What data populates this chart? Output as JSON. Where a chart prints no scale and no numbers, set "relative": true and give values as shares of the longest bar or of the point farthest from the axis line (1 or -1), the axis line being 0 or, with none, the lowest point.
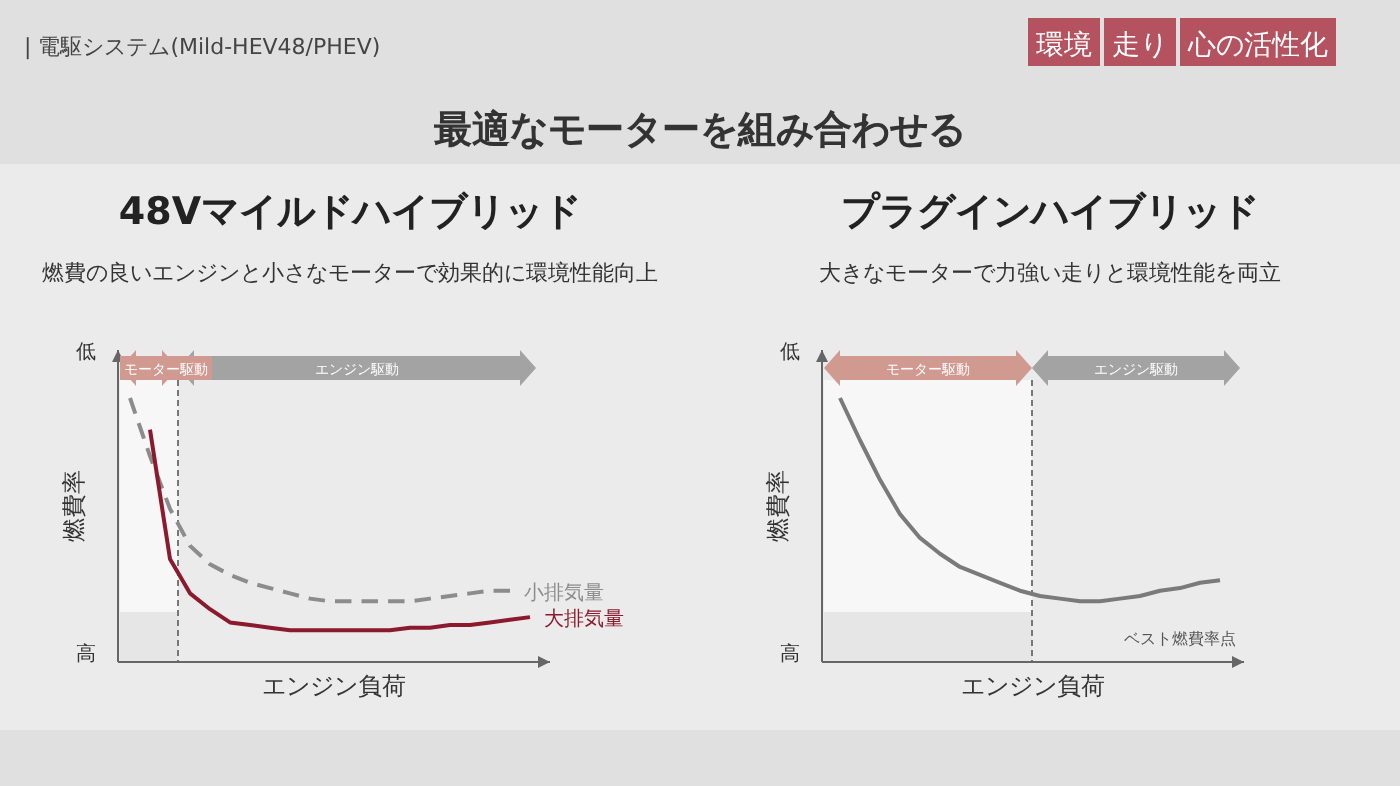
{
  "chart_data": [
    {
      "type": "other",
      "title": "最適なモーターを組み合わせる",
      "annotations": [
        "| 電駆システム(Mild-HEV48/PHEV)",
        "環境",
        "走り",
        "心の活性化"
      ]
    },
    {
      "type": "line",
      "relative": true,
      "title": "48Vマイルドハイブリッド",
      "subtitle": "燃費の良いエンジンと小さなモーターで効果的に環境性能向上",
      "xlabel": "エンジン負荷",
      "ylabel": "燃費率",
      "legend": false,
      "annotations": [
        "低",
        "高",
        "モーター駆動",
        "エンジン駆動"
      ],
      "categories": [
        null,
        null,
        null,
        null,
        null,
        null,
        null,
        null,
        null,
        null,
        null,
        null,
        null,
        null,
        null,
        null,
        null,
        null,
        null,
        null,
        null
      ],
      "series": [
        {
          "name": "小排気量",
          "color": "#8c8c8c",
          "line_style": "dashed",
          "values": [
            1,
            0.78,
            0.58,
            0.44,
            0.37,
            0.33,
            0.3,
            0.28,
            0.26,
            0.24,
            0.23,
            0.23,
            0.23,
            0.23,
            0.23,
            0.24,
            0.25,
            0.26,
            0.27,
            0.27,
            null
          ]
        },
        {
          "name": "大排気量",
          "color": "#8b1a2e",
          "line_style": "solid",
          "values": [
            null,
            0.88,
            0.39,
            0.26,
            0.2,
            0.15,
            0.14,
            0.13,
            0.12,
            0.12,
            0.12,
            0.12,
            0.12,
            0.12,
            0.13,
            0.13,
            0.14,
            0.14,
            0.15,
            0.16,
            0.17
          ]
        }
      ]
    },
    {
      "type": "line",
      "relative": true,
      "title": "プラグインハイブリッド",
      "subtitle": "大きなモーターで力強い走りと環境性能を両立",
      "xlabel": "エンジン負荷",
      "ylabel": "燃費率",
      "legend": false,
      "annotations": [
        "低",
        "高",
        "モーター駆動",
        "エンジン駆動",
        "ベスト燃費率点"
      ],
      "categories": [
        null,
        null,
        null,
        null,
        null,
        null,
        null,
        null,
        null,
        null,
        null,
        null,
        null,
        null,
        null,
        null,
        null,
        null,
        null,
        null
      ],
      "series": [
        {
          "color": "#7a7a7a",
          "line_style": "solid",
          "values": [
            1,
            0.84,
            0.69,
            0.56,
            0.47,
            0.41,
            0.36,
            0.33,
            0.3,
            0.27,
            0.25,
            0.24,
            0.23,
            0.23,
            0.24,
            0.25,
            0.27,
            0.28,
            0.3,
            0.31
          ]
        }
      ]
    }
  ]
}
